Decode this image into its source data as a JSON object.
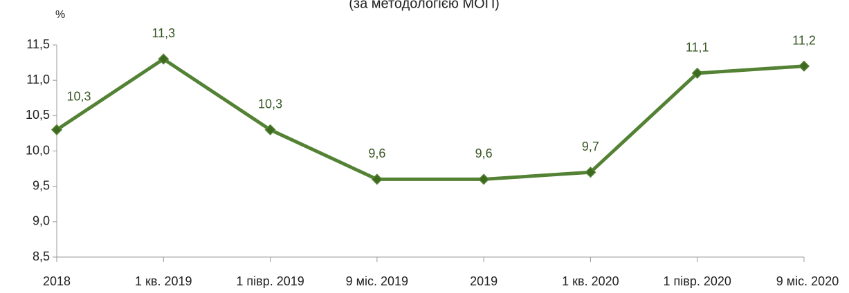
{
  "chart_data": {
    "type": "line",
    "subtitle": "(за методологією МОП)",
    "y_label": "%",
    "categories": [
      "2018",
      "1 кв. 2019",
      "1 півр. 2019",
      "9 міс. 2019",
      "2019",
      "1 кв. 2020",
      "1 півр. 2020",
      "9 міс. 2020"
    ],
    "values": [
      10.3,
      11.3,
      10.3,
      9.6,
      9.6,
      9.7,
      11.1,
      11.2
    ],
    "value_labels": [
      "10,3",
      "11,3",
      "10,3",
      "9,6",
      "9,6",
      "9,7",
      "11,1",
      "11,2"
    ],
    "color": "#548235",
    "marker_color": "#3d6a1e",
    "label_color": "#375623",
    "ylim": [
      8.5,
      11.5
    ],
    "yticks": [
      {
        "value": 8.5,
        "label": "8,5"
      },
      {
        "value": 9.0,
        "label": "9,0"
      },
      {
        "value": 9.5,
        "label": "9,5"
      },
      {
        "value": 10.0,
        "label": "10,0"
      },
      {
        "value": 10.5,
        "label": "10,5"
      },
      {
        "value": 11.0,
        "label": "11,0"
      },
      {
        "value": 11.5,
        "label": "11,5"
      }
    ]
  }
}
